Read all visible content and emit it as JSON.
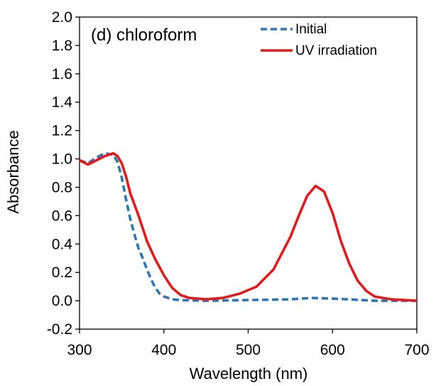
{
  "chart_data": {
    "type": "line",
    "xlabel": "Wavelength (nm)",
    "ylabel": "Absorbance",
    "xlim": [
      300,
      700
    ],
    "ylim": [
      -0.2,
      2.0
    ],
    "xticks": [
      "300",
      "400",
      "500",
      "600",
      "700"
    ],
    "yticks": [
      "-0.2",
      "0.0",
      "0.2",
      "0.4",
      "0.6",
      "0.8",
      "1.0",
      "1.2",
      "1.4",
      "1.6",
      "1.8",
      "2.0"
    ],
    "annotation": "(d) chloroform",
    "grid": false,
    "legend_position": "top-right",
    "series": [
      {
        "name": "Initial",
        "color": "#2E75B6",
        "line_style": "dashed",
        "points": [
          [
            300,
            0.99
          ],
          [
            310,
            0.97
          ],
          [
            320,
            1.01
          ],
          [
            330,
            1.04
          ],
          [
            340,
            1.03
          ],
          [
            345,
            0.98
          ],
          [
            350,
            0.87
          ],
          [
            355,
            0.72
          ],
          [
            360,
            0.58
          ],
          [
            365,
            0.47
          ],
          [
            370,
            0.37
          ],
          [
            375,
            0.3
          ],
          [
            380,
            0.22
          ],
          [
            385,
            0.15
          ],
          [
            390,
            0.09
          ],
          [
            395,
            0.05
          ],
          [
            400,
            0.03
          ],
          [
            410,
            0.01
          ],
          [
            420,
            0.005
          ],
          [
            450,
            0.0
          ],
          [
            500,
            0.005
          ],
          [
            550,
            0.01
          ],
          [
            575,
            0.02
          ],
          [
            600,
            0.015
          ],
          [
            620,
            0.01
          ],
          [
            650,
            0.0
          ],
          [
            700,
            0.0
          ]
        ]
      },
      {
        "name": "UV irradiation",
        "color": "#E31A1C",
        "line_style": "solid",
        "points": [
          [
            300,
            0.99
          ],
          [
            310,
            0.96
          ],
          [
            320,
            0.99
          ],
          [
            330,
            1.02
          ],
          [
            340,
            1.04
          ],
          [
            345,
            1.02
          ],
          [
            350,
            0.97
          ],
          [
            355,
            0.88
          ],
          [
            360,
            0.76
          ],
          [
            365,
            0.68
          ],
          [
            370,
            0.6
          ],
          [
            375,
            0.51
          ],
          [
            380,
            0.42
          ],
          [
            390,
            0.29
          ],
          [
            400,
            0.18
          ],
          [
            410,
            0.09
          ],
          [
            420,
            0.04
          ],
          [
            430,
            0.02
          ],
          [
            450,
            0.01
          ],
          [
            470,
            0.02
          ],
          [
            490,
            0.05
          ],
          [
            510,
            0.1
          ],
          [
            530,
            0.22
          ],
          [
            550,
            0.45
          ],
          [
            560,
            0.6
          ],
          [
            570,
            0.74
          ],
          [
            580,
            0.81
          ],
          [
            590,
            0.77
          ],
          [
            600,
            0.62
          ],
          [
            610,
            0.42
          ],
          [
            620,
            0.26
          ],
          [
            630,
            0.14
          ],
          [
            640,
            0.07
          ],
          [
            650,
            0.03
          ],
          [
            670,
            0.01
          ],
          [
            700,
            0.0
          ]
        ]
      }
    ]
  }
}
